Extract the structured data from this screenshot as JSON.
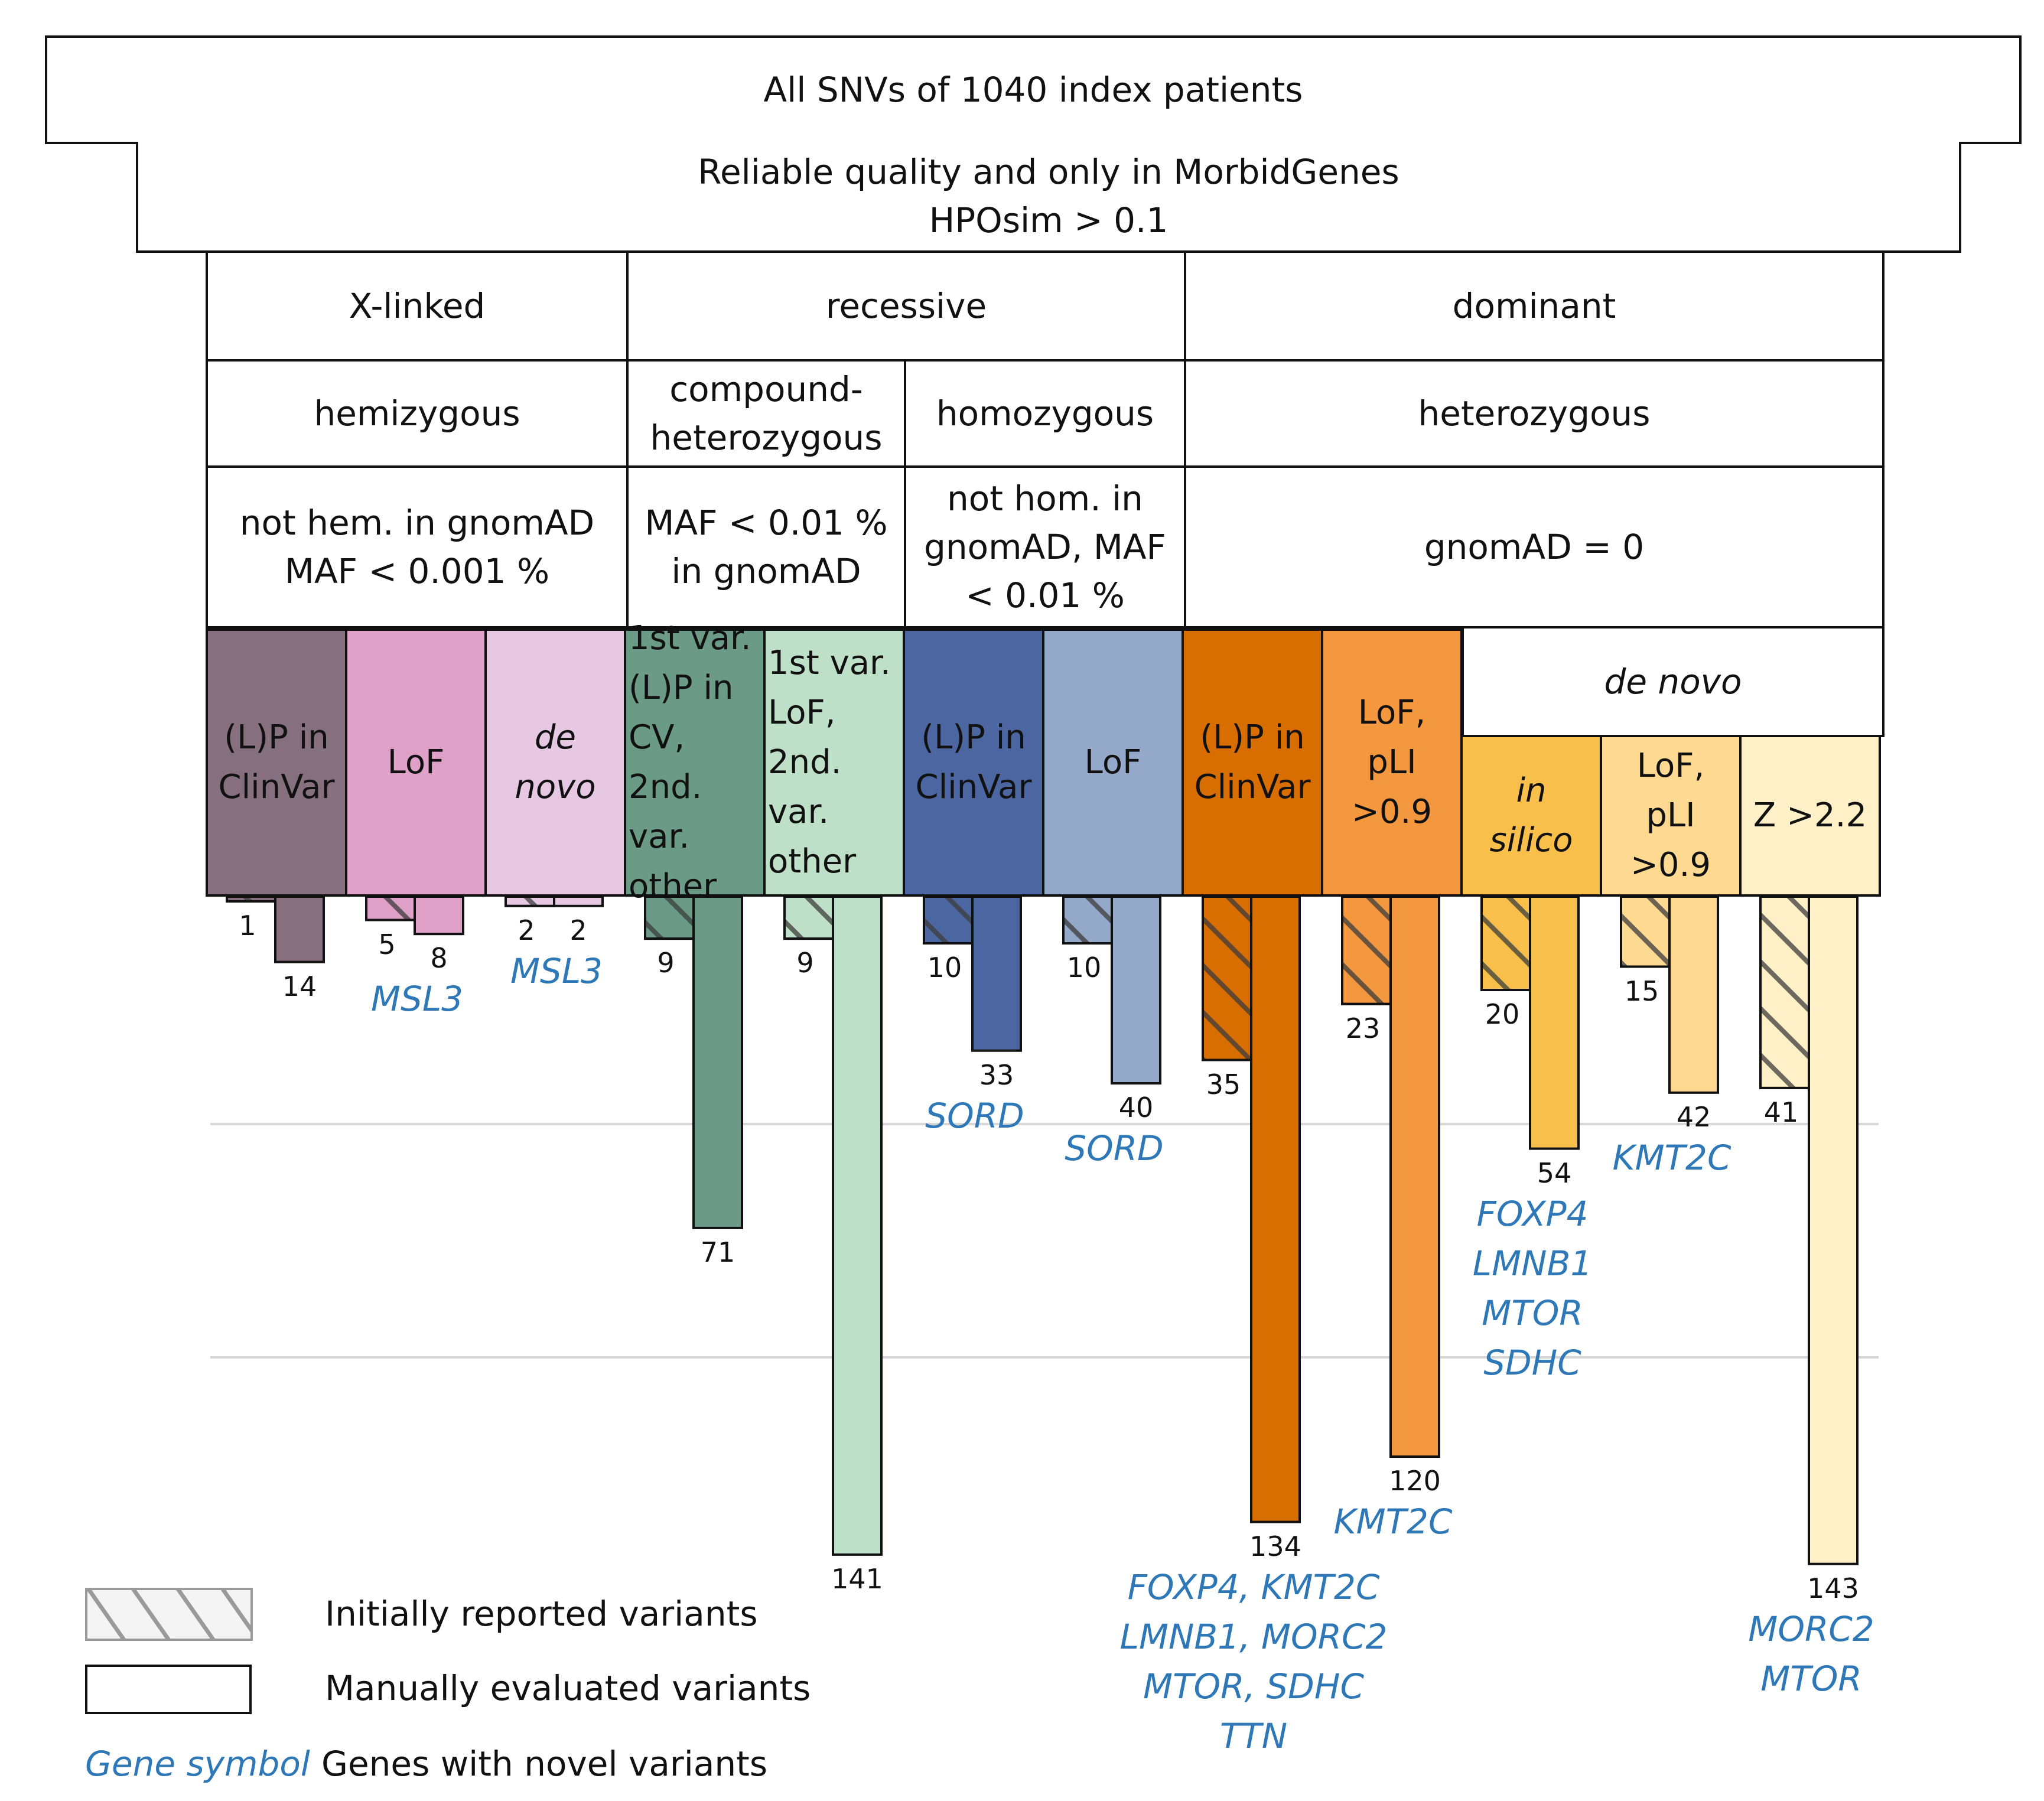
{
  "header": {
    "title": "All SNVs of 1040 index patients",
    "filter_line1": "Reliable quality and only in MorbidGenes",
    "filter_line2": "HPOsim > 0.1"
  },
  "inheritance": {
    "xlinked": "X-linked",
    "recessive": "recessive",
    "dominant": "dominant"
  },
  "zygosity": {
    "hemizygous": "hemizygous",
    "compound_line1": "compound-",
    "compound_line2": "heterozygous",
    "homozygous": "homozygous",
    "heterozygous": "heterozygous"
  },
  "frequency": {
    "hemi_line1": "not hem. in gnomAD",
    "hemi_line2": "MAF < 0.001 %",
    "comp_line1": "MAF < 0.01 %",
    "comp_line2": "in gnomAD",
    "homo_line1": "not hom. in",
    "homo_line2": "gnomAD, MAF",
    "homo_line3": "< 0.01 %",
    "hetero": "gnomAD = 0"
  },
  "de_novo_header": "de novo",
  "categories": [
    {
      "lines": [
        "(L)P in",
        "ClinVar"
      ]
    },
    {
      "lines": [
        "LoF"
      ]
    },
    {
      "lines": [
        "de",
        "novo"
      ]
    },
    {
      "lines": [
        "1st var.",
        "(L)P in",
        "CV, 2nd.",
        "var.",
        "other"
      ]
    },
    {
      "lines": [
        "1st var.",
        "LoF,",
        "2nd.",
        "var.",
        "other"
      ]
    },
    {
      "lines": [
        "(L)P in",
        "ClinVar"
      ]
    },
    {
      "lines": [
        "LoF"
      ]
    },
    {
      "lines": [
        "(L)P in",
        "ClinVar"
      ]
    },
    {
      "lines": [
        "LoF,",
        "pLI >0.9"
      ]
    },
    {
      "lines": [
        "in",
        "silico"
      ]
    },
    {
      "lines": [
        "LoF,",
        "pLI >0.9"
      ]
    },
    {
      "lines": [
        "Z >2.2"
      ]
    }
  ],
  "chart_data": {
    "type": "bar",
    "title": "All SNVs of 1040 index patients",
    "xlabel": "",
    "ylabel": "",
    "ylim": [
      0,
      150
    ],
    "grid": true,
    "gridlines": [
      50,
      100
    ],
    "orientation": "downward",
    "series": [
      {
        "name": "Initially reported variants",
        "pattern": "hatched",
        "values": [
          1,
          5,
          2,
          9,
          9,
          10,
          10,
          35,
          23,
          20,
          15,
          41
        ]
      },
      {
        "name": "Manually evaluated variants",
        "pattern": "solid",
        "values": [
          14,
          8,
          2,
          71,
          141,
          33,
          40,
          134,
          120,
          54,
          42,
          143
        ]
      }
    ],
    "colors": [
      "#86707f",
      "#e0a1c8",
      "#e6c8e2",
      "#6b9b87",
      "#bfe0c8",
      "#4c66a1",
      "#94a9c9",
      "#d86d00",
      "#f3983e",
      "#f9bf4b",
      "#fdd992",
      "#fff0c8"
    ],
    "novel_genes": [
      {
        "category": 1,
        "genes": [
          "MSL3"
        ]
      },
      {
        "category": 2,
        "genes": [
          "MSL3"
        ]
      },
      {
        "category": 5,
        "genes": [
          "SORD"
        ]
      },
      {
        "category": 6,
        "genes": [
          "SORD"
        ]
      },
      {
        "category": 7,
        "genes": [
          "FOXP4, KMT2C",
          "LMNB1, MORC2",
          "MTOR, SDHC",
          "TTN"
        ]
      },
      {
        "category": 8,
        "genes": [
          "KMT2C"
        ]
      },
      {
        "category": 9,
        "genes": [
          "FOXP4",
          "LMNB1",
          "MTOR",
          "SDHC"
        ]
      },
      {
        "category": 10,
        "genes": [
          "KMT2C"
        ]
      },
      {
        "category": 11,
        "genes": [
          "MORC2",
          "MTOR"
        ]
      }
    ]
  },
  "legend": {
    "reported": "Initially reported variants",
    "evaluated": "Manually evaluated variants",
    "gene_sample": "Gene symbol",
    "gene_desc": "Genes with novel variants"
  }
}
